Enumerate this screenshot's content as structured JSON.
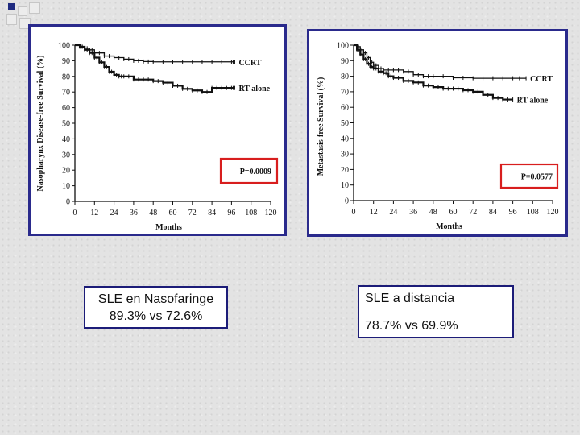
{
  "colors": {
    "frame": "#2a2a8c",
    "pbox": "#d81e1e",
    "curve": "#111111"
  },
  "chart_data": [
    {
      "type": "line",
      "ylabel": "Nasopharynx Disease-free Survival (%)",
      "xlabel": "Months",
      "x_ticks": [
        0,
        12,
        24,
        36,
        48,
        60,
        72,
        84,
        96,
        108,
        120
      ],
      "y_ticks": [
        0,
        10,
        20,
        30,
        40,
        50,
        60,
        70,
        80,
        90,
        100
      ],
      "xlim": [
        0,
        120
      ],
      "ylim": [
        0,
        100
      ],
      "p_value": "P=0.0009",
      "series": [
        {
          "name": "CCRT",
          "x": [
            0,
            3,
            6,
            9,
            12,
            18,
            24,
            30,
            36,
            42,
            48,
            60,
            72,
            84,
            96,
            98
          ],
          "y": [
            100,
            99,
            98,
            97,
            95,
            93,
            92,
            91,
            90,
            89.5,
            89.3,
            89.3,
            89.3,
            89.3,
            89.3,
            89.3
          ]
        },
        {
          "name": "RT alone",
          "x": [
            0,
            3,
            6,
            9,
            12,
            15,
            18,
            21,
            24,
            27,
            30,
            36,
            42,
            48,
            54,
            60,
            66,
            72,
            78,
            84,
            90,
            96,
            98
          ],
          "y": [
            100,
            99,
            97,
            95,
            92,
            89,
            86,
            83,
            81,
            80,
            80,
            78,
            78,
            77,
            76,
            74,
            72,
            71,
            70,
            72.6,
            72.6,
            72.6,
            72.6
          ]
        }
      ]
    },
    {
      "type": "line",
      "ylabel": "Metastasis-free Survival (%)",
      "xlabel": "Months",
      "x_ticks": [
        0,
        12,
        24,
        36,
        48,
        60,
        72,
        84,
        96,
        108,
        120
      ],
      "y_ticks": [
        0,
        10,
        20,
        30,
        40,
        50,
        60,
        70,
        80,
        90,
        100
      ],
      "xlim": [
        0,
        120
      ],
      "ylim": [
        0,
        100
      ],
      "p_value": "P=0.0577",
      "series": [
        {
          "name": "CCRT",
          "x": [
            0,
            2,
            4,
            6,
            8,
            10,
            12,
            15,
            18,
            24,
            30,
            36,
            42,
            48,
            60,
            72,
            84,
            96,
            104
          ],
          "y": [
            100,
            99,
            97,
            95,
            92,
            89,
            87,
            85,
            84,
            84,
            83,
            81,
            80,
            80,
            79,
            78.7,
            78.7,
            78.7,
            78.7
          ]
        },
        {
          "name": "RT alone",
          "x": [
            0,
            2,
            4,
            6,
            8,
            10,
            12,
            15,
            18,
            21,
            24,
            30,
            36,
            42,
            48,
            54,
            60,
            66,
            72,
            78,
            84,
            90,
            96
          ],
          "y": [
            100,
            97,
            94,
            91,
            88,
            86,
            85,
            83,
            82,
            80,
            79,
            77,
            76,
            74,
            73,
            72,
            72,
            71,
            70,
            68,
            66,
            65,
            65
          ]
        }
      ]
    }
  ],
  "boxes": {
    "left": {
      "line1": "SLE en Nasofaringe",
      "line2": "89.3% vs 72.6%"
    },
    "right": {
      "line1": "SLE a distancia",
      "line2": "78.7% vs 69.9%"
    }
  }
}
